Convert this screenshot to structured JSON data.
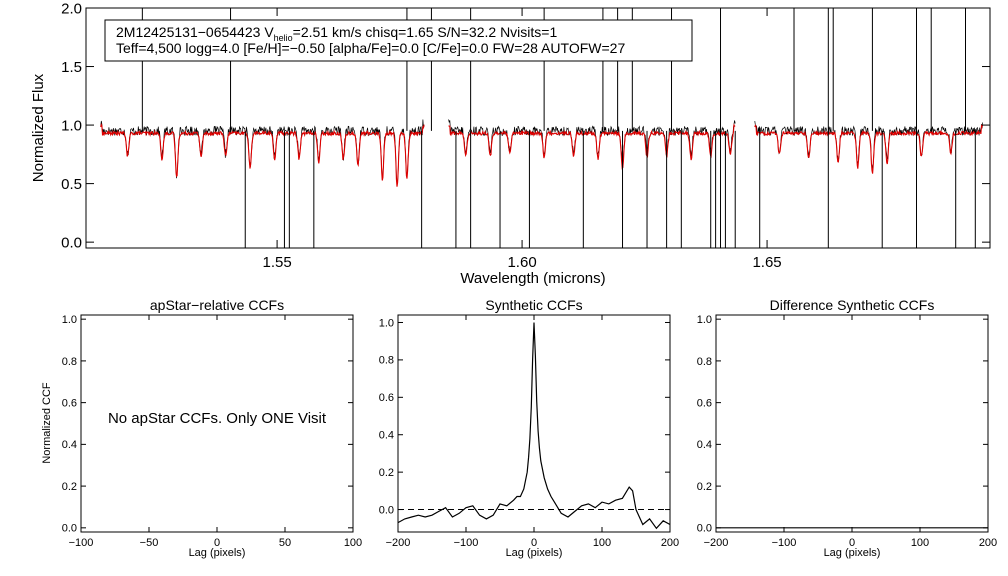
{
  "chart_data": [
    {
      "type": "line",
      "id": "spectrum",
      "xlabel": "Wavelength (microns)",
      "ylabel": "Normalized Flux",
      "xlim": [
        1.511,
        1.6955
      ],
      "ylim": [
        -0.05,
        2.0
      ],
      "xticks": [
        1.55,
        1.6,
        1.65
      ],
      "xtick_labels": [
        "1.55",
        "1.60",
        "1.65"
      ],
      "yticks": [
        0.0,
        0.5,
        1.0,
        1.5,
        2.0
      ],
      "ytick_labels": [
        "0.0",
        "0.5",
        "1.0",
        "1.5",
        "2.0"
      ],
      "annotation": {
        "star": "2M12425131−0654423",
        "v": "V",
        "v_sub": "helio",
        "line1_rest": "=2.51 km/s  chisq=1.65  S/N=32.2  Nvisits=1",
        "line2": "Teff=4,500 logg=4.0 [Fe/H]=−0.50 [alpha/Fe]=0.0 [C/Fe]=0.0 FW=28 AUTOFW=27"
      },
      "chips": [
        [
          1.514,
          1.58
        ],
        [
          1.585,
          1.6435
        ],
        [
          1.6475,
          1.694
        ]
      ],
      "series": [
        {
          "name": "observed",
          "color": "#000000",
          "level": 0.95,
          "noise": 0.04
        },
        {
          "name": "model",
          "color": "#dd0000",
          "level": 0.93,
          "noise": 0.015
        }
      ],
      "absorption_lines": [
        {
          "x": 1.5195,
          "depth": 0.2
        },
        {
          "x": 1.5265,
          "depth": 0.22
        },
        {
          "x": 1.5295,
          "depth": 0.38
        },
        {
          "x": 1.5345,
          "depth": 0.2
        },
        {
          "x": 1.5395,
          "depth": 0.2
        },
        {
          "x": 1.5445,
          "depth": 0.3
        },
        {
          "x": 1.5495,
          "depth": 0.22
        },
        {
          "x": 1.5545,
          "depth": 0.22
        },
        {
          "x": 1.5585,
          "depth": 0.25
        },
        {
          "x": 1.5635,
          "depth": 0.22
        },
        {
          "x": 1.5665,
          "depth": 0.28
        },
        {
          "x": 1.5715,
          "depth": 0.4
        },
        {
          "x": 1.5745,
          "depth": 0.45
        },
        {
          "x": 1.5765,
          "depth": 0.38
        },
        {
          "x": 1.5885,
          "depth": 0.2
        },
        {
          "x": 1.5935,
          "depth": 0.2
        },
        {
          "x": 1.5975,
          "depth": 0.18
        },
        {
          "x": 1.6045,
          "depth": 0.2
        },
        {
          "x": 1.6105,
          "depth": 0.2
        },
        {
          "x": 1.6155,
          "depth": 0.22
        },
        {
          "x": 1.6205,
          "depth": 0.3
        },
        {
          "x": 1.6255,
          "depth": 0.2
        },
        {
          "x": 1.6295,
          "depth": 0.2
        },
        {
          "x": 1.6345,
          "depth": 0.22
        },
        {
          "x": 1.6385,
          "depth": 0.2
        },
        {
          "x": 1.6425,
          "depth": 0.18
        },
        {
          "x": 1.6525,
          "depth": 0.18
        },
        {
          "x": 1.6585,
          "depth": 0.22
        },
        {
          "x": 1.6645,
          "depth": 0.25
        },
        {
          "x": 1.6685,
          "depth": 0.3
        },
        {
          "x": 1.6715,
          "depth": 0.35
        },
        {
          "x": 1.6745,
          "depth": 0.25
        },
        {
          "x": 1.6815,
          "depth": 0.2
        },
        {
          "x": 1.6875,
          "depth": 0.18
        }
      ],
      "spikes_up": [
        1.5225,
        1.5405,
        1.5765,
        1.5815,
        1.5895,
        1.6045,
        1.6165,
        1.6195,
        1.6225,
        1.6305,
        1.6405,
        1.6555,
        1.6625,
        1.6635,
        1.6715,
        1.6805,
        1.6835,
        1.6905
      ],
      "spikes_down": [
        1.5435,
        1.5515,
        1.5525,
        1.5575,
        1.5795,
        1.5865,
        1.5895,
        1.5955,
        1.6015,
        1.6125,
        1.6205,
        1.6255,
        1.6295,
        1.6325,
        1.6385,
        1.6395,
        1.6405,
        1.6415,
        1.6435,
        1.6485,
        1.6625,
        1.6735,
        1.6805,
        1.6885,
        1.6925
      ]
    },
    {
      "type": "line",
      "id": "apstar_ccf",
      "title": "apStar−relative CCFs",
      "xlabel": "Lag (pixels)",
      "ylabel": "Normalized CCF",
      "xlim": [
        -100,
        100
      ],
      "ylim": [
        -0.02,
        1.02
      ],
      "xticks": [
        -100,
        -50,
        0,
        50,
        100
      ],
      "xtick_labels": [
        "−100",
        "−50",
        "0",
        "50",
        "100"
      ],
      "yticks": [
        0.0,
        0.2,
        0.4,
        0.6,
        0.8,
        1.0
      ],
      "ytick_labels": [
        "0.0",
        "0.2",
        "0.4",
        "0.6",
        "0.8",
        "1.0"
      ],
      "message": "No apStar CCFs.  Only ONE Visit",
      "series": []
    },
    {
      "type": "line",
      "id": "synthetic_ccf",
      "title": "Synthetic CCFs",
      "xlabel": "Lag (pixels)",
      "ylabel": "",
      "xlim": [
        -200,
        200
      ],
      "ylim": [
        -0.12,
        1.04
      ],
      "xticks": [
        -200,
        -100,
        0,
        100,
        200
      ],
      "xtick_labels": [
        "−200",
        "−100",
        "0",
        "100",
        "200"
      ],
      "yticks": [
        0.0,
        0.2,
        0.4,
        0.6,
        0.8,
        1.0
      ],
      "ytick_labels": [
        "0.0",
        "0.2",
        "0.4",
        "0.6",
        "0.8",
        "1.0"
      ],
      "reference_line": 0.0,
      "series": [
        {
          "name": "ccf",
          "x": [
            -200,
            -190,
            -180,
            -170,
            -160,
            -150,
            -140,
            -130,
            -120,
            -110,
            -100,
            -90,
            -80,
            -70,
            -60,
            -50,
            -40,
            -30,
            -25,
            -20,
            -15,
            -10,
            -8,
            -6,
            -4,
            -2,
            0,
            2,
            4,
            6,
            8,
            10,
            15,
            20,
            25,
            30,
            40,
            50,
            60,
            70,
            80,
            90,
            100,
            110,
            120,
            130,
            140,
            145,
            150,
            160,
            170,
            180,
            190,
            200
          ],
          "y": [
            -0.07,
            -0.05,
            -0.04,
            -0.03,
            -0.04,
            -0.03,
            -0.01,
            0.01,
            -0.04,
            -0.02,
            0.01,
            0.02,
            -0.03,
            -0.05,
            -0.03,
            0.03,
            0.02,
            0.05,
            0.07,
            0.07,
            0.11,
            0.2,
            0.28,
            0.38,
            0.55,
            0.8,
            1.0,
            0.82,
            0.58,
            0.42,
            0.33,
            0.26,
            0.17,
            0.11,
            0.07,
            0.04,
            -0.02,
            -0.04,
            -0.01,
            0.02,
            0.03,
            0.01,
            0.04,
            0.03,
            0.05,
            0.06,
            0.12,
            0.1,
            0.0,
            -0.08,
            -0.05,
            -0.1,
            -0.06,
            -0.08
          ]
        }
      ]
    },
    {
      "type": "line",
      "id": "difference_ccf",
      "title": "Difference Synthetic CCFs",
      "xlabel": "Lag (pixels)",
      "ylabel": "",
      "xlim": [
        -200,
        200
      ],
      "ylim": [
        -0.02,
        1.02
      ],
      "xticks": [
        -200,
        -100,
        0,
        100,
        200
      ],
      "xtick_labels": [
        "−200",
        "−100",
        "0",
        "100",
        "200"
      ],
      "yticks": [
        0.0,
        0.2,
        0.4,
        0.6,
        0.8,
        1.0
      ],
      "ytick_labels": [
        "0.0",
        "0.2",
        "0.4",
        "0.6",
        "0.8",
        "1.0"
      ],
      "series": [
        {
          "name": "difference",
          "x": [
            -200,
            200
          ],
          "y": [
            0.0,
            0.0
          ]
        }
      ]
    }
  ]
}
